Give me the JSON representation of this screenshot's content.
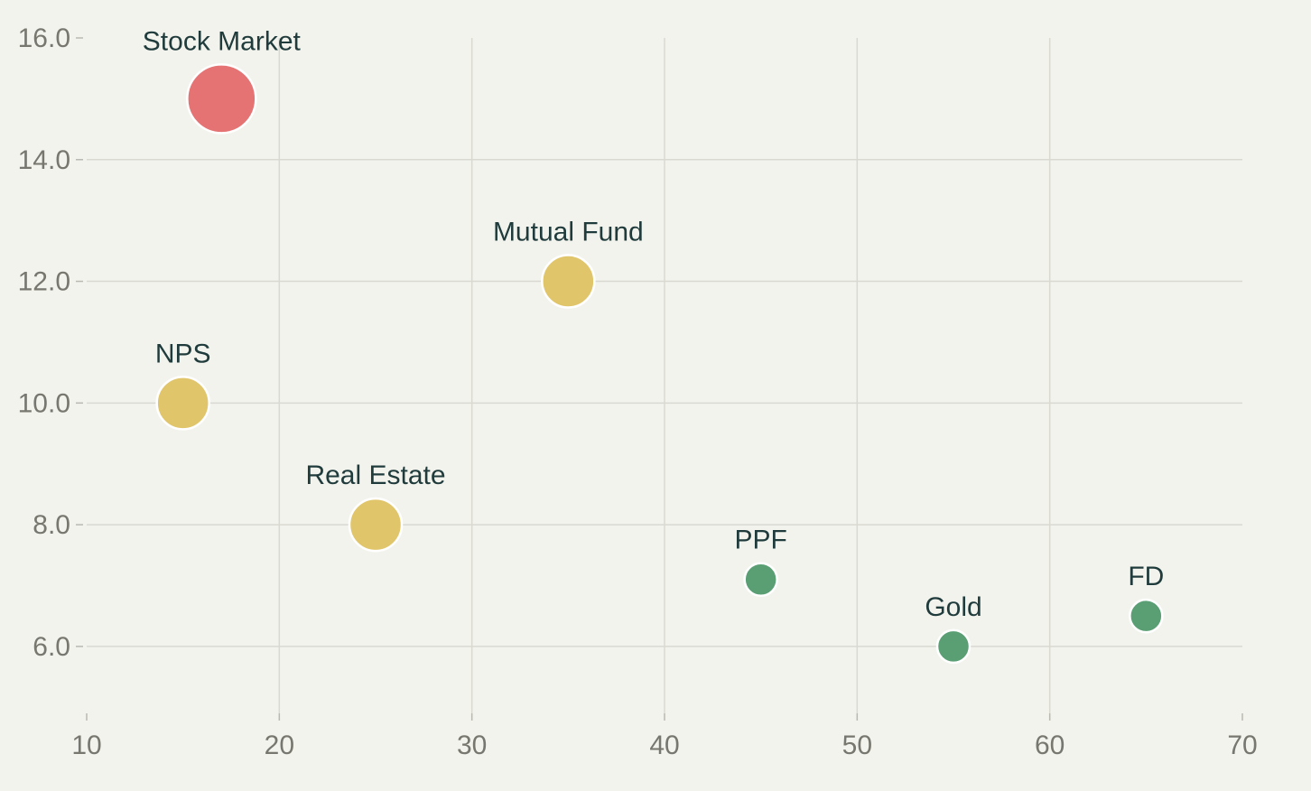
{
  "chart_data": {
    "type": "scatter",
    "title": "",
    "xlabel": "",
    "ylabel": "",
    "xlim": [
      10,
      70
    ],
    "ylim": [
      4.9,
      16.0
    ],
    "x_ticks": [
      10,
      20,
      30,
      40,
      50,
      60,
      70
    ],
    "y_ticks": [
      6.0,
      8.0,
      10.0,
      12.0,
      14.0,
      16.0
    ],
    "x_tick_labels": [
      "10",
      "20",
      "30",
      "40",
      "50",
      "60",
      "70"
    ],
    "y_tick_labels": [
      "6.0",
      "8.0",
      "10.0",
      "12.0",
      "14.0",
      "16.0"
    ],
    "grid": true,
    "points": [
      {
        "label": "Stock Market",
        "x": 17,
        "y": 15.0,
        "size": 3,
        "color": "#e57373"
      },
      {
        "label": "Mutual Fund",
        "x": 35,
        "y": 12.0,
        "size": 2,
        "color": "#e0c56a"
      },
      {
        "label": "NPS",
        "x": 15,
        "y": 10.0,
        "size": 2,
        "color": "#e0c56a"
      },
      {
        "label": "Real Estate",
        "x": 25,
        "y": 8.0,
        "size": 2,
        "color": "#e0c56a"
      },
      {
        "label": "PPF",
        "x": 45,
        "y": 7.1,
        "size": 1,
        "color": "#5a9e74"
      },
      {
        "label": "Gold",
        "x": 55,
        "y": 6.0,
        "size": 1,
        "color": "#5a9e74"
      },
      {
        "label": "FD",
        "x": 65,
        "y": 6.5,
        "size": 1,
        "color": "#5a9e74"
      }
    ]
  }
}
